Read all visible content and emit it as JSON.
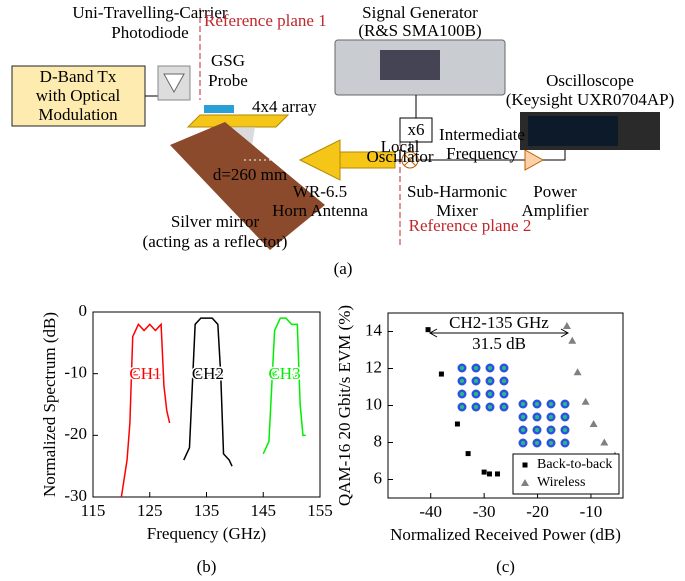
{
  "diagram": {
    "photodiode": [
      "Uni-Travelling-Carrier",
      "Photodiode"
    ],
    "reference_plane_1": "Reference plane 1",
    "signal_generator": [
      "Signal Generator",
      "(R&S SMA100B)"
    ],
    "transmitter": [
      "D-Band Tx",
      "with Optical",
      "Modulation"
    ],
    "probe": [
      "GSG",
      "Probe"
    ],
    "array": "4x4 array",
    "multiplier": "x6",
    "oscilloscope": [
      "Oscilloscope",
      "(Keysight UXR0704AP)"
    ],
    "local_oscillator": [
      "Local",
      "Oscillator"
    ],
    "intermediate_frequency": [
      "Intermediate",
      "Frequency"
    ],
    "distance": "d=260 mm",
    "horn": [
      "WR-6.5",
      "Horn Antenna"
    ],
    "mixer": [
      "Sub-Harmonic",
      "Mixer"
    ],
    "amplifier": [
      "Power",
      "Amplifier"
    ],
    "mirror": [
      "Silver mirror",
      "(acting as a reflector)"
    ],
    "reference_plane_2": "Reference plane 2",
    "panel_label": "(a)"
  },
  "chart_data": [
    {
      "type": "line",
      "panel_label": "(b)",
      "x_label": "Frequency (GHz)",
      "y_label": "Normalized Spectrum (dB)",
      "xlim": [
        115,
        155
      ],
      "xticks": [
        115,
        125,
        135,
        145,
        155
      ],
      "ylim": [
        -30,
        0
      ],
      "yticks": [
        -30,
        -20,
        -10,
        0
      ],
      "series": [
        {
          "name": "CH1",
          "color": "#ff0000",
          "x": [
            120,
            120.5,
            121,
            121.5,
            122,
            123,
            124,
            125,
            126,
            127,
            127.5,
            128,
            128.5
          ],
          "values": [
            -30,
            -27,
            -24,
            -18,
            -4,
            -2,
            -3,
            -2,
            -3,
            -2,
            -12,
            -16,
            -18
          ]
        },
        {
          "name": "CH2",
          "color": "#000000",
          "x": [
            131,
            131.5,
            132,
            133,
            134,
            135,
            136,
            137,
            137.5,
            138,
            139,
            139.5
          ],
          "values": [
            -24,
            -23,
            -22,
            -2,
            -1,
            -1,
            -1,
            -2,
            -10,
            -23,
            -24,
            -25
          ]
        },
        {
          "name": "CH3",
          "color": "#00ee00",
          "x": [
            145,
            145.5,
            146,
            147,
            148,
            149,
            150,
            151,
            151.5,
            152,
            152.5
          ],
          "values": [
            -23,
            -22,
            -21,
            -3,
            -1,
            -1,
            -2,
            -2,
            -15,
            -20,
            -20
          ]
        }
      ]
    },
    {
      "type": "scatter",
      "panel_label": "(c)",
      "x_label": "Normalized Received Power (dB)",
      "y_label": "QAM-16 20 Gbit/s EVM (%)",
      "xlim": [
        -48,
        -4
      ],
      "xticks": [
        -40,
        -30,
        -20,
        -10
      ],
      "ylim": [
        5,
        15
      ],
      "yticks": [
        6,
        8,
        10,
        12,
        14
      ],
      "annotations": [
        "CH2-135 GHz",
        "31.5 dB"
      ],
      "legend": "lower right",
      "series": [
        {
          "name": "Back-to-back",
          "color": "#000000",
          "marker": "square",
          "x": [
            -40.5,
            -38,
            -35,
            -33,
            -30,
            -29,
            -27.5
          ],
          "values": [
            14.1,
            11.7,
            9.0,
            7.4,
            6.4,
            6.3,
            6.3
          ]
        },
        {
          "name": "Wireless",
          "color": "#808080",
          "marker": "triangle",
          "x": [
            -14.5,
            -13.5,
            -12.5,
            -11,
            -9.5,
            -7.5,
            -5.5
          ],
          "values": [
            14.3,
            13.5,
            11.8,
            10.2,
            9.0,
            8.0,
            7.3
          ]
        }
      ]
    }
  ]
}
